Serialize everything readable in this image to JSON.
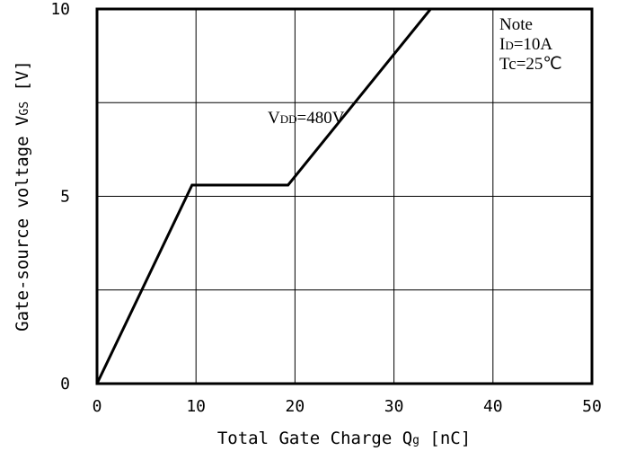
{
  "chart_data": {
    "type": "line",
    "xlabel": "Total Gate Charge Qg [nC]",
    "ylabel": "Gate-source voltage VGS [V]",
    "xlim": [
      0,
      50
    ],
    "ylim": [
      0,
      10
    ],
    "x_ticks": [
      0,
      10,
      20,
      30,
      40,
      50
    ],
    "y_ticks": [
      0,
      5,
      10
    ],
    "grid": true,
    "series": [
      {
        "name": "VDD=480V",
        "x": [
          0,
          9.6,
          19.3,
          33.7,
          50
        ],
        "y": [
          0,
          5.3,
          5.3,
          10,
          10
        ]
      }
    ],
    "annotations": {
      "series_label": {
        "main": "V",
        "sub": "DD",
        "rest": "=480V"
      },
      "note": {
        "title": "Note",
        "line1": {
          "main": "I",
          "sub": "D",
          "rest": "=10A"
        },
        "line2": {
          "main": "Tc",
          "rest": "=25℃"
        }
      }
    },
    "xlabel_parts": {
      "text": "Total Gate Charge Q",
      "sub": "g",
      "unit": " [nC]"
    },
    "ylabel_parts": {
      "text": "Gate-source voltage V",
      "sub": "GS",
      "unit": " [V]"
    },
    "line_color": "#000000",
    "grid_color": "#000000"
  }
}
